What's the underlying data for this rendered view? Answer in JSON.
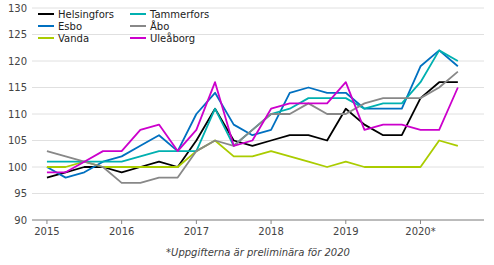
{
  "chart_data": {
    "type": "line",
    "annotations": [
      "*Uppgifterna är preliminära för 2020"
    ],
    "x": [
      2015.0,
      2015.25,
      2015.5,
      2015.75,
      2016.0,
      2016.25,
      2016.5,
      2016.75,
      2017.0,
      2017.25,
      2017.5,
      2017.75,
      2018.0,
      2018.25,
      2018.5,
      2018.75,
      2019.0,
      2019.25,
      2019.5,
      2019.75,
      2020.0,
      2020.25,
      2020.5
    ],
    "xlim": [
      2014.8,
      2020.85
    ],
    "xticks": [
      2015,
      2016,
      2017,
      2018,
      2019,
      {
        "value": 2020,
        "label": "2020*"
      }
    ],
    "ylim": [
      90,
      130
    ],
    "yticks": [
      90,
      95,
      100,
      105,
      110,
      115,
      120,
      125,
      130
    ],
    "grid": "y",
    "legend": "upper left",
    "series": [
      {
        "name": "Helsingfors",
        "color": "#000000",
        "values": [
          98,
          99,
          100,
          100,
          99,
          100,
          101,
          100,
          105,
          111,
          105,
          104,
          105,
          106,
          106,
          105,
          111,
          108,
          106,
          106,
          113,
          116,
          116
        ]
      },
      {
        "name": "Esbo",
        "color": "#0070c0",
        "values": [
          100,
          98,
          99,
          101,
          102,
          104,
          106,
          103,
          110,
          114,
          108,
          106,
          107,
          114,
          115,
          114,
          114,
          111,
          111,
          111,
          119,
          122,
          119
        ]
      },
      {
        "name": "Vanda",
        "color": "#aacc00",
        "values": [
          100,
          100,
          101,
          100,
          100,
          100,
          100,
          100,
          103,
          105,
          102,
          102,
          103,
          102,
          101,
          100,
          101,
          100,
          100,
          100,
          100,
          105,
          104
        ]
      },
      {
        "name": "Tammerfors",
        "color": "#00b0b0",
        "values": [
          101,
          101,
          101,
          101,
          101,
          102,
          103,
          103,
          103,
          111,
          104,
          107,
          110,
          111,
          113,
          113,
          113,
          111,
          112,
          112,
          116,
          122,
          120
        ]
      },
      {
        "name": "Åbo",
        "color": "#888888",
        "values": [
          103,
          102,
          101,
          100,
          97,
          97,
          98,
          98,
          103,
          105,
          104,
          107,
          110,
          110,
          112,
          110,
          110,
          112,
          113,
          113,
          113,
          115,
          118
        ]
      },
      {
        "name": "Uleåborg",
        "color": "#cc00cc",
        "values": [
          99,
          99,
          101,
          103,
          103,
          107,
          108,
          103,
          107,
          116,
          104,
          105,
          111,
          112,
          112,
          112,
          116,
          107,
          108,
          108,
          107,
          107,
          115
        ]
      }
    ]
  }
}
